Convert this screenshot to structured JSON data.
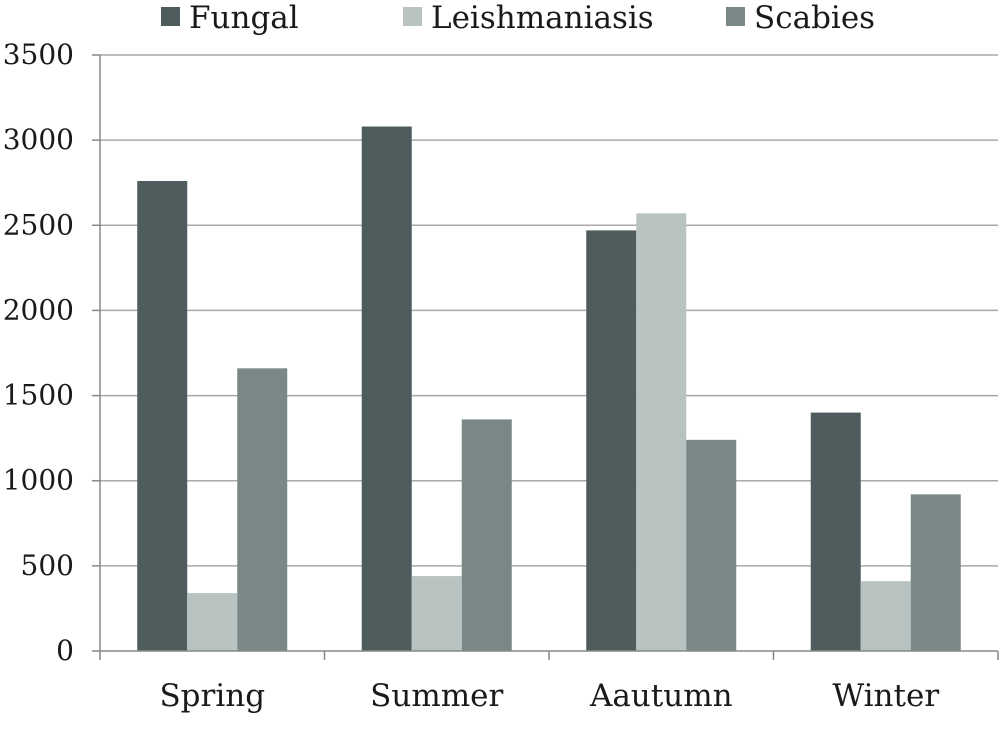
{
  "chart_data": {
    "type": "bar",
    "title": "",
    "xlabel": "",
    "ylabel": "",
    "categories": [
      "Spring",
      "Summer",
      "Aautumn",
      "Winter"
    ],
    "series": [
      {
        "name": "Fungal",
        "color": "#4f5c5e",
        "values": [
          2760,
          3080,
          2470,
          1400
        ]
      },
      {
        "name": "Leishmaniasis",
        "color": "#b8c3c1",
        "values": [
          340,
          440,
          2570,
          410
        ]
      },
      {
        "name": "Scabies",
        "color": "#798887",
        "values": [
          1660,
          1360,
          1240,
          920
        ]
      }
    ],
    "ylim": [
      0,
      3500
    ],
    "yticks": [
      "0",
      "500",
      "1000",
      "1500",
      "2000",
      "2500",
      "3000",
      "3500"
    ],
    "grid": true,
    "legend_position": "top"
  }
}
